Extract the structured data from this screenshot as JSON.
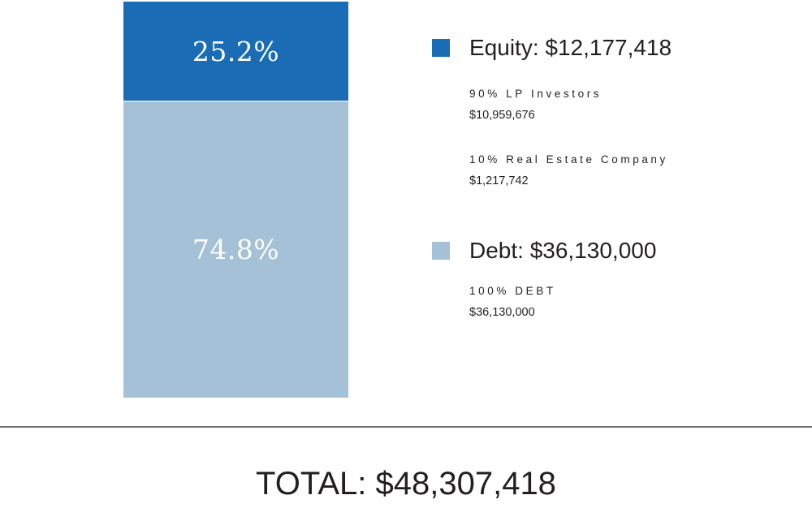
{
  "chart_data": {
    "type": "bar",
    "stacked": true,
    "percent_scale": true,
    "segments": [
      {
        "key": "equity",
        "percent_label": "25.2%",
        "value": 25.2,
        "color": "#1a6db5",
        "legend_title": "Equity: $12,177,418",
        "breakdown": [
          {
            "label": "90% LP Investors",
            "value": "$10,959,676"
          },
          {
            "label": "10% Real Estate Company",
            "value": "$1,217,742"
          }
        ]
      },
      {
        "key": "debt",
        "percent_label": "74.8%",
        "value": 74.8,
        "color": "#a4c1d7",
        "legend_title": "Debt: $36,130,000",
        "breakdown": [
          {
            "label": "100% DEBT",
            "value": "$36,130,000"
          }
        ]
      }
    ],
    "total_label": "TOTAL: $48,307,418"
  }
}
